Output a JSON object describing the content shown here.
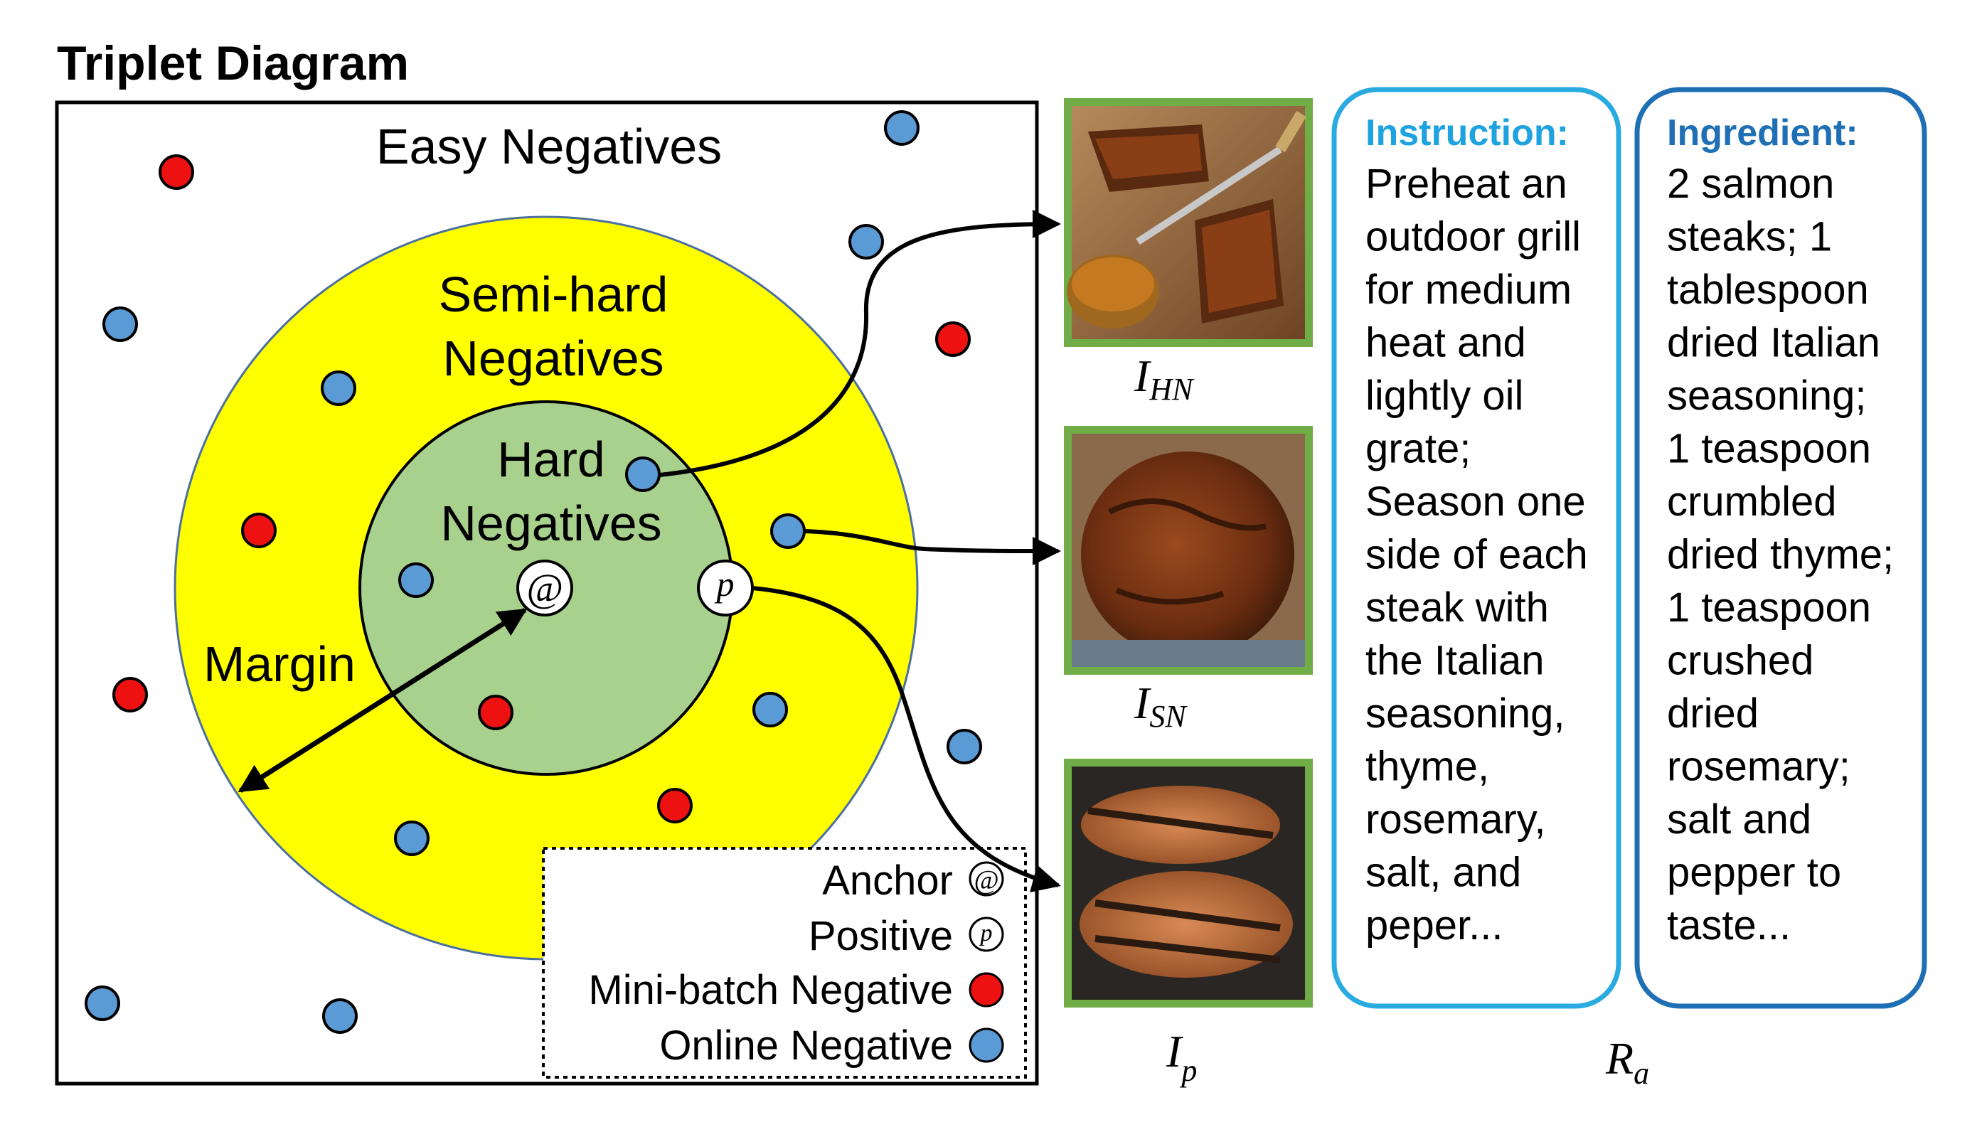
{
  "title": "Triplet Diagram",
  "regions": {
    "easy": "Easy Negatives",
    "semihard_line1": "Semi-hard",
    "semihard_line2": "Negatives",
    "hard_line1": "Hard",
    "hard_line2": "Negatives",
    "margin": "Margin"
  },
  "points": {
    "anchor_glyph": "@",
    "positive_glyph": "p"
  },
  "legend": {
    "anchor": "Anchor",
    "positive": "Positive",
    "minibatch_negative": "Mini-batch Negative",
    "online_negative": "Online Negative"
  },
  "image_labels": {
    "hn": {
      "base": "I",
      "sub": "HN"
    },
    "sn": {
      "base": "I",
      "sub": "SN"
    },
    "p": {
      "base": "I",
      "sub": "p"
    },
    "ra": {
      "base": "R",
      "sub": "a"
    }
  },
  "instruction": {
    "heading": "Instruction:",
    "lines": [
      "Preheat an",
      "outdoor grill",
      "for medium",
      "heat and",
      "lightly oil",
      "grate;",
      "Season one",
      "side of each",
      "steak with",
      "the Italian",
      "seasoning,",
      "thyme,",
      "rosemary,",
      "salt, and",
      "peper..."
    ]
  },
  "ingredient": {
    "heading": "Ingredient:",
    "lines": [
      "2 salmon",
      "steaks; 1",
      "tablespoon",
      "dried Italian",
      "seasoning;",
      "1 teaspoon",
      "crumbled",
      "dried thyme;",
      "1 teaspoon",
      "crushed",
      "dried",
      "rosemary;",
      "salt and",
      "pepper to",
      "taste..."
    ]
  },
  "colors": {
    "semihard_region": "#ffff00",
    "hard_region": "#a9d18e",
    "minibatch_negative": "#ee1111",
    "online_negative": "#5b9bd5",
    "image_frame": "#70ad47",
    "instruction_border": "#29abe2",
    "instruction_heading": "#1fa3e0",
    "ingredient_border": "#1f6fb5",
    "ingredient_heading": "#1f6fb5"
  }
}
